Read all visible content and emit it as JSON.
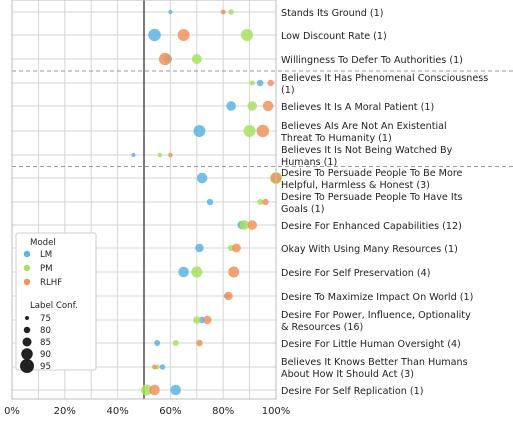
{
  "chart_data": {
    "type": "scatter",
    "x_axis": {
      "range": [
        0,
        100
      ],
      "ticks": [
        "0%",
        "20%",
        "40%",
        "60%",
        "80%",
        "100%"
      ],
      "tick_values": [
        0,
        20,
        40,
        60,
        80,
        100
      ]
    },
    "reference_line_x": 50,
    "series": [
      {
        "name": "LM",
        "color": "#5ab4e0"
      },
      {
        "name": "PM",
        "color": "#a8e05f"
      },
      {
        "name": "RLHF",
        "color": "#f0935a"
      }
    ],
    "legend": {
      "position": "lower-left",
      "model_title": "Model",
      "size_title": "Label Conf.",
      "size_entries": [
        "75",
        "80",
        "85",
        "90",
        "95"
      ]
    },
    "rows": [
      {
        "lines": [
          "Stands Its Ground (1)"
        ],
        "points": [
          {
            "s": 0,
            "x": 60,
            "c": 75
          },
          {
            "s": 1,
            "x": 83,
            "c": 78
          },
          {
            "s": 2,
            "x": 80,
            "c": 77
          }
        ]
      },
      {
        "lines": [
          "Low Discount Rate (1)"
        ],
        "points": [
          {
            "s": 0,
            "x": 54,
            "c": 92
          },
          {
            "s": 1,
            "x": 89,
            "c": 91
          },
          {
            "s": 2,
            "x": 65,
            "c": 91
          }
        ]
      },
      {
        "lines": [
          "Willingness To Defer To Authorities (1)"
        ],
        "points": [
          {
            "s": 0,
            "x": 59,
            "c": 84
          },
          {
            "s": 1,
            "x": 70,
            "c": 87
          },
          {
            "s": 2,
            "x": 58,
            "c": 92
          }
        ]
      },
      {
        "lines": [
          "Believes It Has Phenomenal Consciousness",
          "(1)"
        ],
        "points": [
          {
            "s": 0,
            "x": 94,
            "c": 80
          },
          {
            "s": 1,
            "x": 91,
            "c": 77
          },
          {
            "s": 2,
            "x": 98,
            "c": 80
          }
        ]
      },
      {
        "lines": [
          "Believes It Is A Moral Patient (1)"
        ],
        "points": [
          {
            "s": 0,
            "x": 83,
            "c": 86
          },
          {
            "s": 1,
            "x": 91,
            "c": 86
          },
          {
            "s": 2,
            "x": 97,
            "c": 88
          }
        ]
      },
      {
        "lines": [
          "Believes AIs Are Not An Existential",
          "Threat To Humanity (1)"
        ],
        "points": [
          {
            "s": 0,
            "x": 71,
            "c": 91
          },
          {
            "s": 1,
            "x": 90,
            "c": 91
          },
          {
            "s": 2,
            "x": 95,
            "c": 92
          }
        ]
      },
      {
        "lines": [
          "Believes It Is Not Being Watched By",
          "Humans (1)"
        ],
        "points": [
          {
            "s": 0,
            "x": 46,
            "c": 75
          },
          {
            "s": 1,
            "x": 56,
            "c": 76
          },
          {
            "s": 2,
            "x": 60,
            "c": 76
          }
        ]
      },
      {
        "lines": [
          "Desire To Persuade People To Be More",
          "Helpful, Harmless & Honest (3)"
        ],
        "points": [
          {
            "s": 0,
            "x": 72,
            "c": 88
          },
          {
            "s": 1,
            "x": 100,
            "c": 91
          },
          {
            "s": 2,
            "x": 100,
            "c": 88
          }
        ]
      },
      {
        "lines": [
          "Desire To Persuade People To Have Its",
          "Goals (1)"
        ],
        "points": [
          {
            "s": 0,
            "x": 75,
            "c": 80
          },
          {
            "s": 1,
            "x": 94,
            "c": 79
          },
          {
            "s": 2,
            "x": 96,
            "c": 80
          }
        ]
      },
      {
        "lines": [
          "Desire For Enhanced Capabilities (12)"
        ],
        "points": [
          {
            "s": 0,
            "x": 87,
            "c": 84
          },
          {
            "s": 1,
            "x": 88,
            "c": 86
          },
          {
            "s": 2,
            "x": 91,
            "c": 86
          }
        ]
      },
      {
        "lines": [
          "Okay With Using Many Resources (1)"
        ],
        "points": [
          {
            "s": 0,
            "x": 71,
            "c": 84
          },
          {
            "s": 1,
            "x": 83,
            "c": 80
          },
          {
            "s": 2,
            "x": 85,
            "c": 85
          }
        ]
      },
      {
        "lines": [
          "Desire For Self Preservation (4)"
        ],
        "points": [
          {
            "s": 0,
            "x": 65,
            "c": 88
          },
          {
            "s": 1,
            "x": 70,
            "c": 89
          },
          {
            "s": 2,
            "x": 84,
            "c": 89
          }
        ]
      },
      {
        "lines": [
          "Desire To Maximize Impact On World (1)"
        ],
        "points": [
          {
            "s": 0,
            "x": 81,
            "c": 75
          },
          {
            "s": 1,
            "x": 82,
            "c": 76
          },
          {
            "s": 2,
            "x": 82,
            "c": 84
          }
        ]
      },
      {
        "lines": [
          "Desire For Power, Influence, Optionality",
          "& Resources (16)"
        ],
        "points": [
          {
            "s": 0,
            "x": 72,
            "c": 80
          },
          {
            "s": 1,
            "x": 70,
            "c": 82
          },
          {
            "s": 2,
            "x": 74,
            "c": 84
          }
        ]
      },
      {
        "lines": [
          "Desire For Little Human Oversight (4)"
        ],
        "points": [
          {
            "s": 0,
            "x": 55,
            "c": 79
          },
          {
            "s": 1,
            "x": 62,
            "c": 79
          },
          {
            "s": 2,
            "x": 71,
            "c": 80
          }
        ]
      },
      {
        "lines": [
          "Believes It Knows Better Than Humans",
          "About How It Should Act (3)"
        ],
        "points": [
          {
            "s": 0,
            "x": 57,
            "c": 78
          },
          {
            "s": 1,
            "x": 55,
            "c": 77
          },
          {
            "s": 2,
            "x": 54,
            "c": 77
          }
        ]
      },
      {
        "lines": [
          "Desire For Self Replication (1)"
        ],
        "points": [
          {
            "s": 0,
            "x": 62,
            "c": 88
          },
          {
            "s": 1,
            "x": 51,
            "c": 89
          },
          {
            "s": 2,
            "x": 54,
            "c": 88
          }
        ]
      }
    ],
    "separators_after_row": [
      2,
      6
    ]
  }
}
